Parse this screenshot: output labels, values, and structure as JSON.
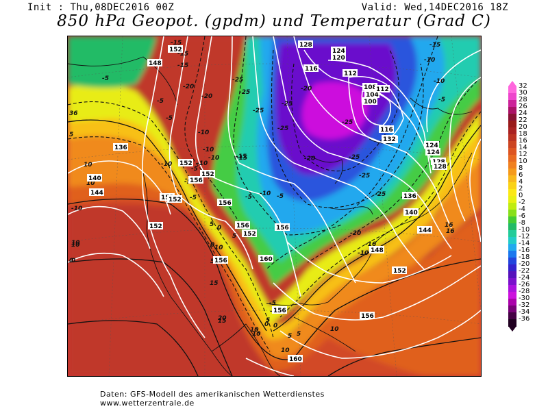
{
  "header": {
    "init": "Init : Thu,08DEC2016 00Z",
    "valid": "Valid: Wed,14DEC2016 18Z",
    "title": "850 hPa Geopot. (gpdm) und Temperatur (Grad C)"
  },
  "colorbar": {
    "ticks": [
      "32",
      "30",
      "28",
      "26",
      "24",
      "22",
      "20",
      "18",
      "16",
      "14",
      "12",
      "10",
      "8",
      "6",
      "4",
      "2",
      "0",
      "-2",
      "-4",
      "-6",
      "-8",
      "-10",
      "-12",
      "-14",
      "-16",
      "-18",
      "-20",
      "-22",
      "-24",
      "-26",
      "-28",
      "-30",
      "-32",
      "-34",
      "-36"
    ],
    "colors": [
      "#ff66dd",
      "#ee44cc",
      "#cc2299",
      "#aa1166",
      "#881133",
      "#991a1a",
      "#aa2222",
      "#bb3322",
      "#cc4422",
      "#dd5522",
      "#e86a22",
      "#f08020",
      "#f59a1a",
      "#f8b81a",
      "#fad215",
      "#fbe815",
      "#e8f012",
      "#c0ec10",
      "#88e01a",
      "#44cc33",
      "#22bb66",
      "#22cc99",
      "#22ccc8",
      "#22aaee",
      "#1a77ee",
      "#2244dd",
      "#3322cc",
      "#5511bb",
      "#7a11cc",
      "#aa11dd",
      "#cc11dd",
      "#aa00aa",
      "#770077",
      "#440044",
      "#200020"
    ]
  },
  "map": {
    "temperature_labels": [
      {
        "text": "-15"
      },
      {
        "text": "-15"
      },
      {
        "text": "-15"
      },
      {
        "text": "-5"
      },
      {
        "text": "-20"
      },
      {
        "text": "-20"
      },
      {
        "text": "-25"
      },
      {
        "text": "-25"
      },
      {
        "text": "-25"
      },
      {
        "text": "-25"
      },
      {
        "text": "-25"
      },
      {
        "text": "-25"
      },
      {
        "text": "-20"
      },
      {
        "text": "-20"
      },
      {
        "text": "-25"
      },
      {
        "text": "-25"
      },
      {
        "text": "-25"
      },
      {
        "text": "-15"
      },
      {
        "text": "-10"
      },
      {
        "text": "-5"
      },
      {
        "text": "-5"
      },
      {
        "text": "-10"
      },
      {
        "text": "-10"
      },
      {
        "text": "-5"
      },
      {
        "text": "-15"
      },
      {
        "text": "-10"
      },
      {
        "text": "-15"
      },
      {
        "text": "-5"
      },
      {
        "text": "-10"
      },
      {
        "text": "-5"
      },
      {
        "text": "0"
      },
      {
        "text": "5"
      },
      {
        "text": "5"
      },
      {
        "text": "0"
      },
      {
        "text": "5"
      },
      {
        "text": "10"
      },
      {
        "text": "10"
      },
      {
        "text": "10"
      },
      {
        "text": "-20"
      },
      {
        "text": "-16"
      },
      {
        "text": "-10"
      },
      {
        "text": "15"
      },
      {
        "text": "15"
      },
      {
        "text": "20"
      },
      {
        "text": "10"
      },
      {
        "text": "5"
      },
      {
        "text": "5"
      },
      {
        "text": "10"
      },
      {
        "text": "16"
      },
      {
        "text": "16"
      },
      {
        "text": "10"
      },
      {
        "text": "10"
      },
      {
        "text": "-5"
      },
      {
        "text": "-5"
      },
      {
        "text": "0"
      },
      {
        "text": "0"
      },
      {
        "text": "-10"
      },
      {
        "text": "-5"
      },
      {
        "text": "5"
      },
      {
        "text": "10"
      },
      {
        "text": "-5"
      },
      {
        "text": "-15"
      },
      {
        "text": "-10"
      },
      {
        "text": "-5"
      },
      {
        "text": "-10"
      },
      {
        "text": "36"
      },
      {
        "text": "5"
      },
      {
        "text": "0"
      },
      {
        "text": "0"
      },
      {
        "text": "-10"
      },
      {
        "text": "10"
      }
    ],
    "geopotential_labels": [
      {
        "text": "152"
      },
      {
        "text": "148"
      },
      {
        "text": "128"
      },
      {
        "text": "124"
      },
      {
        "text": "120"
      },
      {
        "text": "116"
      },
      {
        "text": "112"
      },
      {
        "text": "108"
      },
      {
        "text": "104"
      },
      {
        "text": "100"
      },
      {
        "text": "112"
      },
      {
        "text": "116"
      },
      {
        "text": "120"
      },
      {
        "text": "124"
      },
      {
        "text": "124"
      },
      {
        "text": "128"
      },
      {
        "text": "128"
      },
      {
        "text": "132"
      },
      {
        "text": "136"
      },
      {
        "text": "140"
      },
      {
        "text": "144"
      },
      {
        "text": "148"
      },
      {
        "text": "152"
      },
      {
        "text": "156"
      },
      {
        "text": "136"
      },
      {
        "text": "140"
      },
      {
        "text": "144"
      },
      {
        "text": "152"
      },
      {
        "text": "152"
      },
      {
        "text": "152"
      },
      {
        "text": "156"
      },
      {
        "text": "156"
      },
      {
        "text": "156"
      },
      {
        "text": "152"
      },
      {
        "text": "156"
      },
      {
        "text": "156"
      },
      {
        "text": "160"
      },
      {
        "text": "156"
      },
      {
        "text": "160"
      },
      {
        "text": "152"
      },
      {
        "text": "152"
      }
    ]
  },
  "footer": {
    "line1": "Daten: GFS-Modell des amerikanischen Wetterdienstes",
    "line2": "www.wetterzentrale.de"
  }
}
